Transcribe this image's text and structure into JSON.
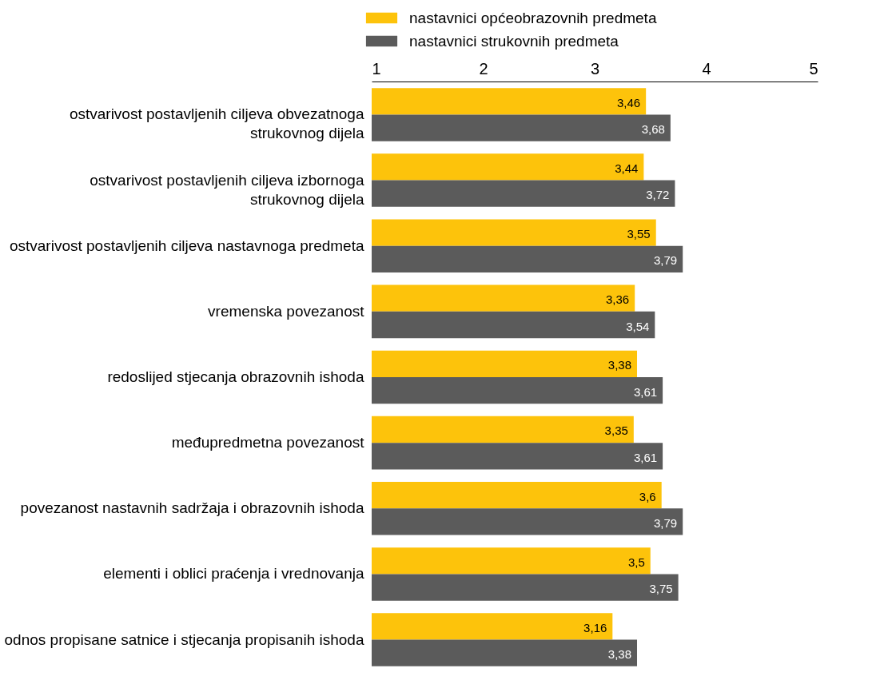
{
  "chart_data": {
    "type": "bar",
    "orientation": "horizontal",
    "categories": [
      "ostvarivost postavljenih ciljeva obvezatnoga strukovnog dijela",
      "ostvarivost postavljenih ciljeva izbornoga strukovnog dijela",
      "ostvarivost postavljenih ciljeva nastavnoga predmeta",
      "vremenska povezanost",
      "redoslijed stjecanja obrazovnih ishoda",
      "međupredmetna povezanost",
      "povezanost nastavnih sadržaja i obrazovnih ishoda",
      "elementi i oblici praćenja i vrednovanja",
      "odnos propisane satnice i stjecanja propisanih ishoda"
    ],
    "series": [
      {
        "name": "nastavnici općeobrazovnih predmeta",
        "color": "#fdc30b",
        "values": [
          3.46,
          3.44,
          3.55,
          3.36,
          3.38,
          3.35,
          3.6,
          3.5,
          3.16
        ],
        "value_labels": [
          "3,46",
          "3,44",
          "3,55",
          "3,36",
          "3,38",
          "3,35",
          "3,6",
          "3,5",
          "3,16"
        ]
      },
      {
        "name": "nastavnici strukovnih predmeta",
        "color": "#5b5b5b",
        "values": [
          3.68,
          3.72,
          3.79,
          3.54,
          3.61,
          3.61,
          3.79,
          3.75,
          3.38
        ],
        "value_labels": [
          "3,68",
          "3,72",
          "3,79",
          "3,54",
          "3,61",
          "3,61",
          "3,79",
          "3,75",
          "3,38"
        ]
      }
    ],
    "xlim": [
      1,
      5
    ],
    "xticks": [
      1,
      2,
      3,
      4,
      5
    ],
    "grid": false,
    "legend": "top"
  }
}
